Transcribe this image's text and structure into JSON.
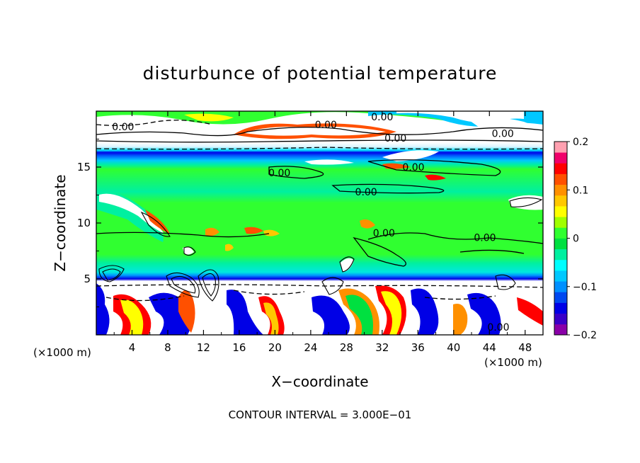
{
  "chart_data": {
    "type": "heatmap",
    "title": "disturbunce of potential temperature",
    "xlabel": "X−coordinate",
    "ylabel": "Z−coordinate",
    "x_unit": "(×1000 m)",
    "y_unit": "(×1000 m)",
    "xlim": [
      0,
      50
    ],
    "ylim": [
      0,
      20
    ],
    "x_ticks": [
      4,
      8,
      12,
      16,
      20,
      24,
      28,
      32,
      36,
      40,
      44,
      48
    ],
    "y_ticks": [
      5,
      10,
      15
    ],
    "colorbar": {
      "range": [
        -0.2,
        0.2
      ],
      "tick_values": [
        0.2,
        0.1,
        0,
        -0.1,
        -0.2
      ],
      "tick_labels": [
        "0.2",
        "0.1",
        "0",
        "−0.1",
        "−0.2"
      ],
      "colors": [
        "#8a00a8",
        "#3a00c8",
        "#0000e6",
        "#0048f0",
        "#0090ff",
        "#00c8ff",
        "#00ffff",
        "#00f0a0",
        "#00e040",
        "#30ff30",
        "#a0ff00",
        "#ffff00",
        "#ffc800",
        "#ff9000",
        "#ff5000",
        "#ff0000",
        "#f0006a",
        "#ffa0b0"
      ]
    },
    "contour_labels": [
      {
        "text": "0.00",
        "x": 3,
        "y": 18.6
      },
      {
        "text": "0.00",
        "x": 25.7,
        "y": 18.8
      },
      {
        "text": "0.00",
        "x": 32,
        "y": 19.5
      },
      {
        "text": "0.00",
        "x": 33.5,
        "y": 17.6
      },
      {
        "text": "0.00",
        "x": 45.5,
        "y": 18
      },
      {
        "text": "0.00",
        "x": 20.5,
        "y": 14.5
      },
      {
        "text": "0.00",
        "x": 35.5,
        "y": 15
      },
      {
        "text": "0.00",
        "x": 30.2,
        "y": 12.8
      },
      {
        "text": "0.00",
        "x": 32.2,
        "y": 9.1
      },
      {
        "text": "0.00",
        "x": 43.5,
        "y": 8.7
      },
      {
        "text": "0.00",
        "x": 45,
        "y": 0.7
      }
    ],
    "annotation": "CONTOUR INTERVAL = 3.000E−01"
  }
}
